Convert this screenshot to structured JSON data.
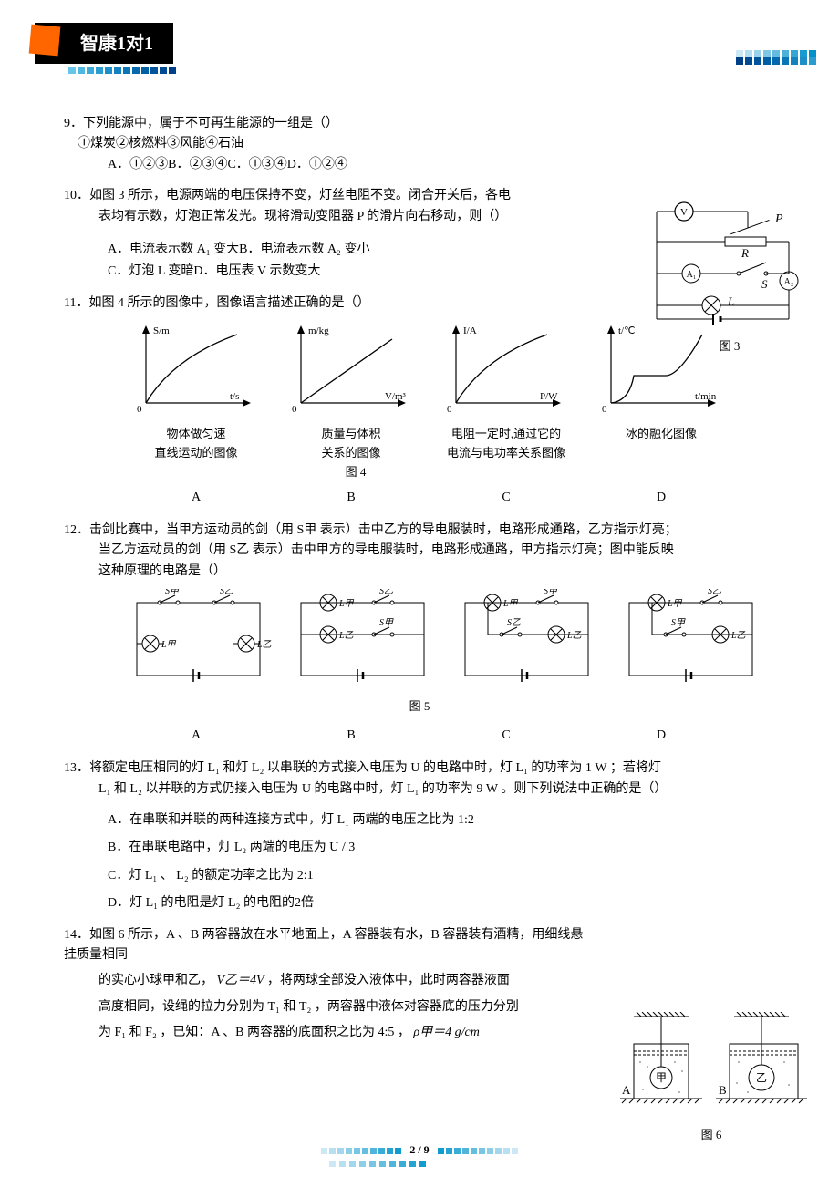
{
  "logo": {
    "text": "智康1对1",
    "brand_color": "#ff6600",
    "bg_color": "#000000"
  },
  "header_dots": {
    "colors_left": [
      "#66c5e8",
      "#4fb8e0",
      "#3aaad8",
      "#2a9cd0",
      "#1d8fc8",
      "#1382bf",
      "#0b76b6",
      "#056aad",
      "#015fa4",
      "#00549b",
      "#004a92",
      "#004089"
    ],
    "right_row1": [
      "#cce8f5",
      "#b3ddf0",
      "#99d2eb",
      "#80c7e5",
      "#66bce0",
      "#4db1db",
      "#33a6d5",
      "#1a9bcf",
      "#0090ca"
    ],
    "right_row2": [
      "#004089",
      "#004a92",
      "#00549b",
      "#015fa4",
      "#056aad",
      "#0b76b6",
      "#1382bf",
      "#1d8fc8",
      "#2a9cd0"
    ]
  },
  "q9": {
    "num": "9．",
    "stem": "下列能源中，属于不可再生能源的一组是（）",
    "sub": "①煤炭②核燃料③风能④石油",
    "options": "A．①②③B．②③④C．①③④D．①②④"
  },
  "q10": {
    "num": "10．",
    "stem1": "如图 3 所示，电源两端的电压保持不变，灯丝电阻不变。闭合开关后，各电",
    "stem2": "表均有示数，灯泡正常发光。现将滑动变阻器 P 的滑片向右移动，则（）",
    "optA": "A．电流表示数 A₁ 变大",
    "optB": "B．电流表示数 A₂ 变小",
    "optC": "C．灯泡 L 变暗",
    "optD": "D．电压表 V 示数变大",
    "fig_label": "图 3"
  },
  "q11": {
    "num": "11．",
    "stem": "如图 4 所示的图像中，图像语言描述正确的是（）",
    "charts": [
      {
        "ylabel": "S/m",
        "xlabel": "t/s",
        "caption": "物体做匀速",
        "caption2": "直线运动的图像",
        "letter": "A",
        "type": "sqrt-curve",
        "color": "#000"
      },
      {
        "ylabel": "m/kg",
        "xlabel": "V/m³",
        "caption": "质量与体积",
        "caption2": "关系的图像",
        "letter": "B",
        "type": "linear",
        "color": "#000"
      },
      {
        "ylabel": "I/A",
        "xlabel": "P/W",
        "caption": "电阻一定时,通过它的",
        "caption2": "电流与电功率关系图像",
        "letter": "C",
        "type": "sqrt-curve",
        "color": "#000"
      },
      {
        "ylabel": "t/℃",
        "xlabel": "t/min",
        "caption": "冰的融化图像",
        "caption2": "",
        "letter": "D",
        "type": "s-curve",
        "color": "#000"
      }
    ],
    "fig_label": "图 4"
  },
  "q12": {
    "num": "12．",
    "stem1": "击剑比赛中，当甲方运动员的剑（用 S甲 表示）击中乙方的导电服装时，电路形成通路，乙方指示灯亮；",
    "stem2": "当乙方运动员的剑（用 S乙 表示）击中甲方的导电服装时，电路形成通路，甲方指示灯亮；图中能反映",
    "stem3": "这种原理的电路是（）",
    "letters": [
      "A",
      "B",
      "C",
      "D"
    ],
    "fig_label": "图 5"
  },
  "q13": {
    "num": "13．",
    "stem1_a": "将额定电压相同的灯 L₁ 和灯 L₂ 以串联的方式接入电压为 U 的电路中时，灯 L₁ 的功率为 1 W ；若将灯",
    "stem1_b": "L₁ 和 L₂ 以并联的方式仍接入电压为 U 的电路中时，灯 L₁ 的功率为 9 W 。则下列说法中正确的是（）",
    "optA": "A．在串联和并联的两种连接方式中，灯 L₁ 两端的电压之比为 1:2",
    "optB": "B．在串联电路中，灯 L₂ 两端的电压为 U / 3",
    "optC": "C．灯 L₁ 、 L₂ 的额定功率之比为 2:1",
    "optD": "D．灯 L₁ 的电阻是灯 L₂ 的电阻的2倍"
  },
  "q14": {
    "num": "14．",
    "stem1": "如图 6 所示，A 、B 两容器放在水平地面上，A 容器装有水，B 容器装有酒精，用细线悬挂质量相同",
    "stem2_a": "的实心小球甲和乙，",
    "stem2_b": " V乙＝4V ",
    "stem2_c": "，将两球全部没入液体中，此时两容器液面",
    "stem3": "高度相同，设绳的拉力分别为 T₁ 和 T₂ ，两容器中液体对容器底的压力分别",
    "stem4_a": "为 F₁ 和 F₂ ，已知：A 、B 两容器的底面积之比为 4:5 ，",
    "stem4_b": " ρ甲＝4 g/cm",
    "fig_label": "图 6"
  },
  "footer": {
    "page": "2 / 9",
    "dots_left": [
      "#cce8f5",
      "#b8e0f1",
      "#a3d7ed",
      "#8ecfe8",
      "#79c6e4",
      "#64bee0",
      "#4fb5db",
      "#3aadd7",
      "#25a4d3",
      "#109ccf"
    ],
    "dots_right": [
      "#109ccf",
      "#25a4d3",
      "#3aadd7",
      "#4fb5db",
      "#64bee0",
      "#79c6e4",
      "#8ecfe8",
      "#a3d7ed",
      "#b8e0f1",
      "#cce8f5"
    ]
  }
}
